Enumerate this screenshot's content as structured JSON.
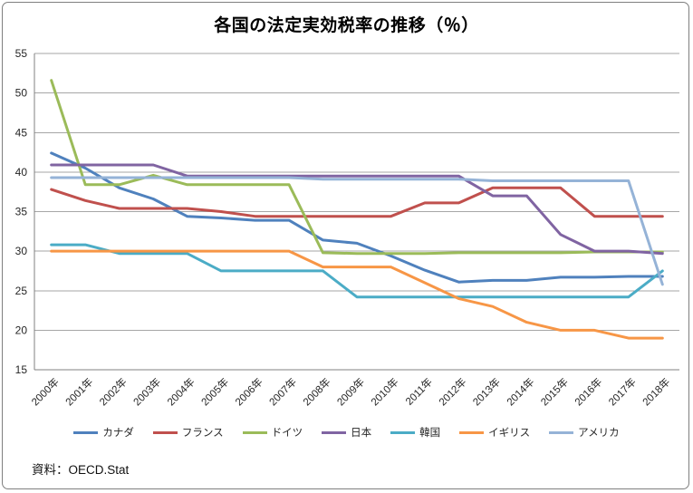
{
  "title": "各国の法定実効税率の推移（％）",
  "source": "資料：OECD.Stat",
  "chart_data": {
    "type": "line",
    "title": "各国の法定実効税率の推移（％）",
    "xlabel": "",
    "ylabel": "",
    "ylim": [
      15,
      55
    ],
    "ytick_step": 5,
    "grid": true,
    "legend_position": "bottom",
    "categories": [
      "2000年",
      "2001年",
      "2002年",
      "2003年",
      "2004年",
      "2005年",
      "2006年",
      "2007年",
      "2008年",
      "2009年",
      "2010年",
      "2011年",
      "2012年",
      "2013年",
      "2014年",
      "2015年",
      "2016年",
      "2017年",
      "2018年"
    ],
    "series": [
      {
        "key": "canada",
        "name": "カナダ",
        "color": "#4F81BD",
        "values": [
          42.4,
          40.5,
          38.0,
          36.6,
          34.4,
          34.2,
          33.9,
          33.9,
          31.4,
          31.0,
          29.4,
          27.6,
          26.1,
          26.3,
          26.3,
          26.7,
          26.7,
          26.8,
          26.8
        ]
      },
      {
        "key": "france",
        "name": "フランス",
        "color": "#C0504D",
        "values": [
          37.8,
          36.4,
          35.4,
          35.4,
          35.4,
          35.0,
          34.4,
          34.4,
          34.4,
          34.4,
          34.4,
          36.1,
          36.1,
          38.0,
          38.0,
          38.0,
          34.4,
          34.4,
          34.4
        ]
      },
      {
        "key": "germany",
        "name": "ドイツ",
        "color": "#9BBB59",
        "values": [
          51.6,
          38.4,
          38.4,
          39.6,
          38.4,
          38.4,
          38.4,
          38.4,
          29.8,
          29.7,
          29.7,
          29.7,
          29.8,
          29.8,
          29.8,
          29.8,
          29.9,
          29.9,
          29.9
        ]
      },
      {
        "key": "japan",
        "name": "日本",
        "color": "#8064A2",
        "values": [
          40.9,
          40.9,
          40.9,
          40.9,
          39.5,
          39.5,
          39.5,
          39.5,
          39.5,
          39.5,
          39.5,
          39.5,
          39.5,
          37.0,
          37.0,
          32.1,
          30.0,
          30.0,
          29.7
        ]
      },
      {
        "key": "korea",
        "name": "韓国",
        "color": "#4BACC6",
        "values": [
          30.8,
          30.8,
          29.7,
          29.7,
          29.7,
          27.5,
          27.5,
          27.5,
          27.5,
          24.2,
          24.2,
          24.2,
          24.2,
          24.2,
          24.2,
          24.2,
          24.2,
          24.2,
          27.5
        ]
      },
      {
        "key": "uk",
        "name": "イギリス",
        "color": "#F79646",
        "values": [
          30.0,
          30.0,
          30.0,
          30.0,
          30.0,
          30.0,
          30.0,
          30.0,
          28.0,
          28.0,
          28.0,
          26.0,
          24.0,
          23.0,
          21.0,
          20.0,
          20.0,
          19.0,
          19.0
        ]
      },
      {
        "key": "usa",
        "name": "アメリカ",
        "color": "#95B3D7",
        "values": [
          39.3,
          39.3,
          39.3,
          39.3,
          39.3,
          39.3,
          39.3,
          39.3,
          39.1,
          39.1,
          39.1,
          39.1,
          39.1,
          38.9,
          38.9,
          38.9,
          38.9,
          38.9,
          25.8
        ]
      }
    ]
  }
}
